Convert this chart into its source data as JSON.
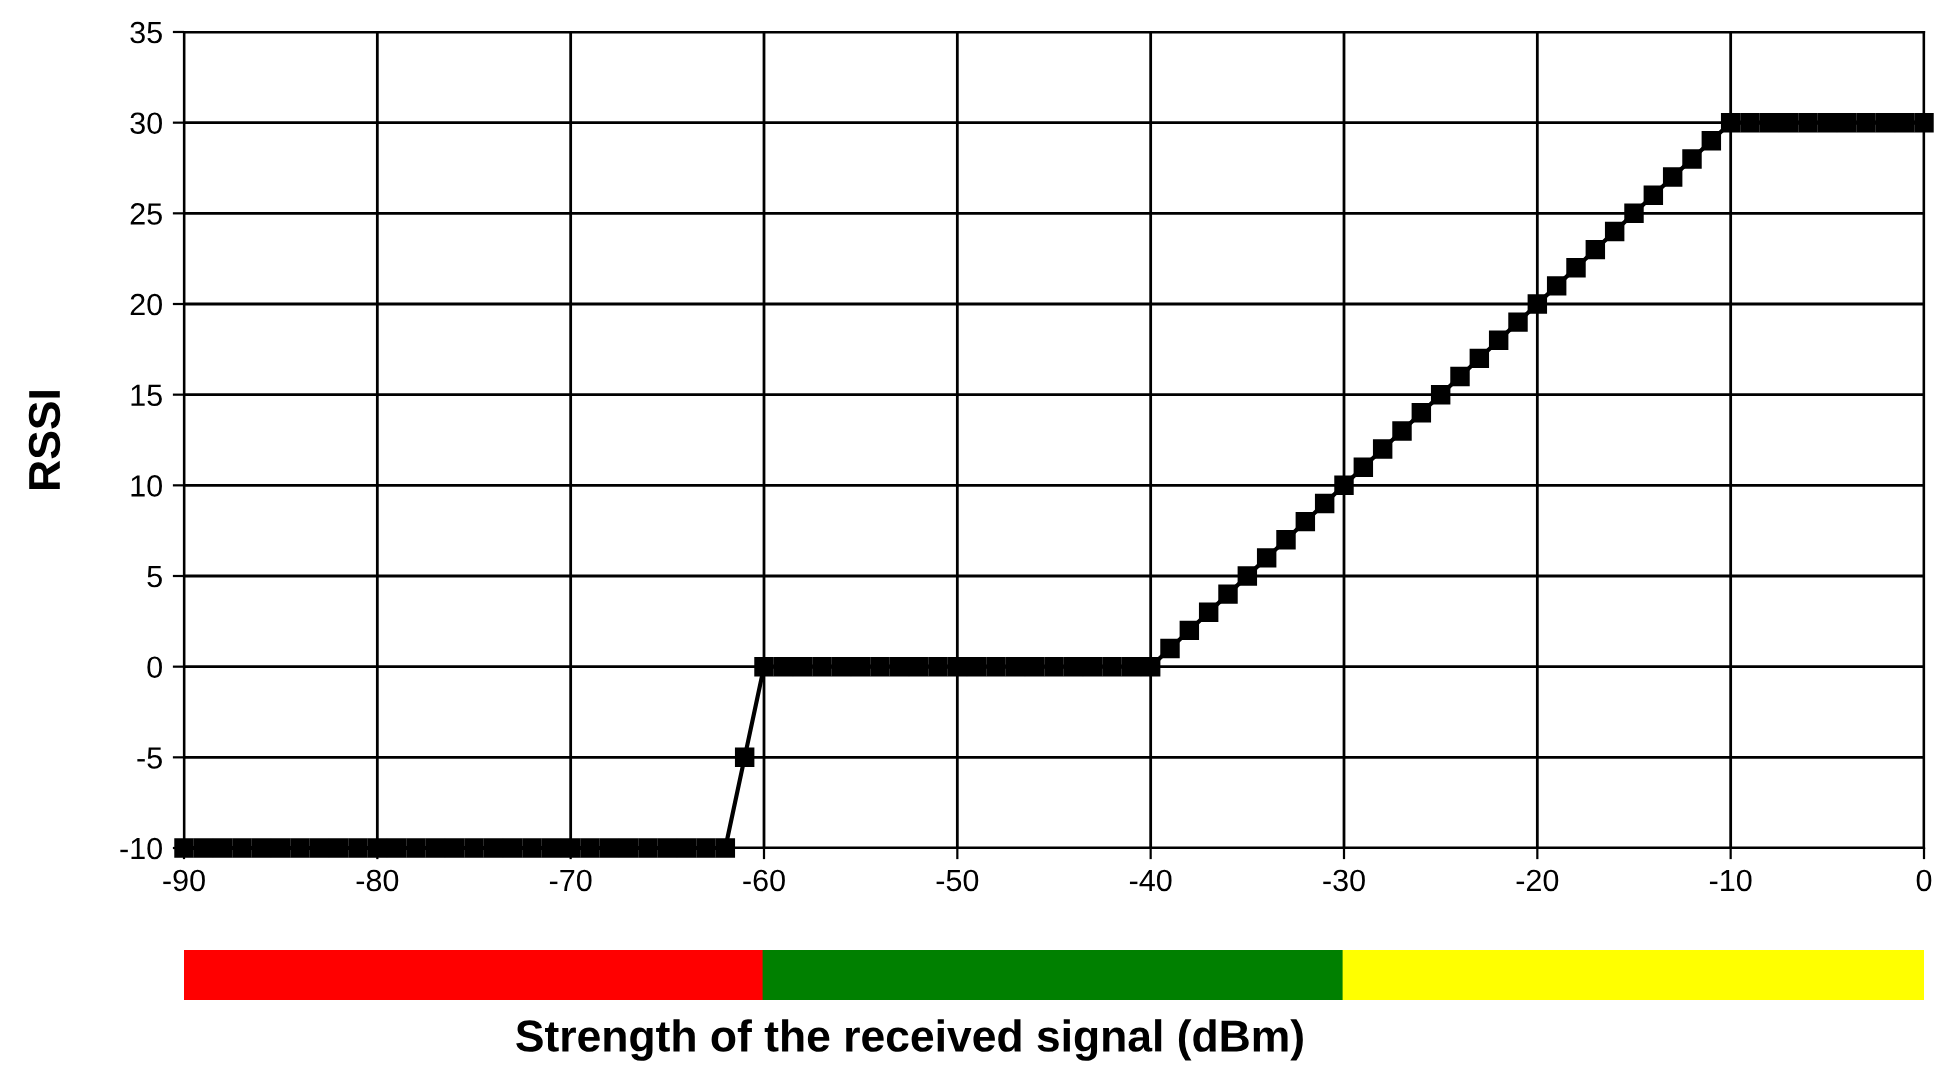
{
  "chart_data": {
    "type": "line",
    "xlabel": "Strength of the received signal (dBm)",
    "ylabel": "RSSI",
    "x": [
      -90,
      -89,
      -88,
      -87,
      -86,
      -85,
      -84,
      -83,
      -82,
      -81,
      -80,
      -79,
      -78,
      -77,
      -76,
      -75,
      -74,
      -73,
      -72,
      -71,
      -70,
      -69,
      -68,
      -67,
      -66,
      -65,
      -64,
      -63,
      -62,
      -61,
      -60,
      -59,
      -58,
      -57,
      -56,
      -55,
      -54,
      -53,
      -52,
      -51,
      -50,
      -49,
      -48,
      -47,
      -46,
      -45,
      -44,
      -43,
      -42,
      -41,
      -40,
      -39,
      -38,
      -37,
      -36,
      -35,
      -34,
      -33,
      -32,
      -31,
      -30,
      -29,
      -28,
      -27,
      -26,
      -25,
      -24,
      -23,
      -22,
      -21,
      -20,
      -19,
      -18,
      -17,
      -16,
      -15,
      -14,
      -13,
      -12,
      -11,
      -10,
      -9,
      -8,
      -7,
      -6,
      -5,
      -4,
      -3,
      -2,
      -1,
      0
    ],
    "series": [
      {
        "color": "#000000",
        "values": [
          -10,
          -10,
          -10,
          -10,
          -10,
          -10,
          -10,
          -10,
          -10,
          -10,
          -10,
          -10,
          -10,
          -10,
          -10,
          -10,
          -10,
          -10,
          -10,
          -10,
          -10,
          -10,
          -10,
          -10,
          -10,
          -10,
          -10,
          -10,
          -10,
          -5,
          0,
          0,
          0,
          0,
          0,
          0,
          0,
          0,
          0,
          0,
          0,
          0,
          0,
          0,
          0,
          0,
          0,
          0,
          0,
          0,
          0,
          1,
          2,
          3,
          4,
          5,
          6,
          7,
          8,
          9,
          10,
          11,
          12,
          13,
          14,
          15,
          16,
          17,
          18,
          19,
          20,
          21,
          22,
          23,
          24,
          25,
          26,
          27,
          28,
          29,
          30,
          30,
          30,
          30,
          30,
          30,
          30,
          30,
          30,
          30,
          30
        ]
      }
    ],
    "xlim": [
      -90,
      0
    ],
    "xticks": [
      -90,
      -80,
      -70,
      -60,
      -50,
      -40,
      -30,
      -20,
      -10,
      0
    ],
    "ylim": [
      -10,
      35
    ],
    "yticks": [
      -10,
      -5,
      0,
      5,
      10,
      15,
      20,
      25,
      30,
      35
    ],
    "grid": true,
    "marker": "square",
    "line_style": "solid",
    "legend": false
  }
}
